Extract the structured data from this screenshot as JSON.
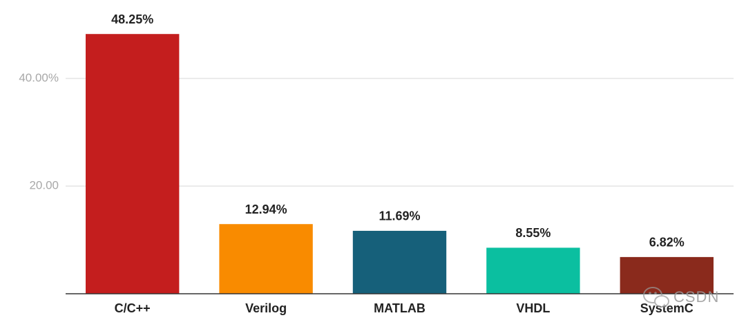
{
  "chart_data": {
    "type": "bar",
    "categories": [
      "C/C++",
      "Verilog",
      "MATLAB",
      "VHDL",
      "SystemC"
    ],
    "values": [
      48.25,
      12.94,
      11.69,
      8.55,
      6.82
    ],
    "value_labels": [
      "48.25%",
      "12.94%",
      "11.69%",
      "8.55%",
      "6.82%"
    ],
    "colors": [
      "#c41e1e",
      "#f98b00",
      "#16607a",
      "#0bbfa0",
      "#8a2a1c"
    ],
    "ylim": [
      0,
      52
    ],
    "yticks": [
      {
        "value": 20,
        "label": "20.00"
      },
      {
        "value": 40,
        "label": "40.00%"
      }
    ],
    "grid": true,
    "watermark": "CSDN"
  }
}
